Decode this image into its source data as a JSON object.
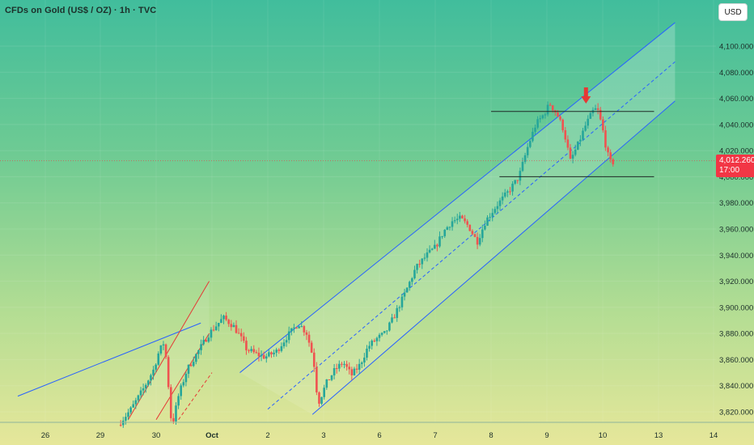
{
  "header": {
    "title": "CFDs on Gold (US$ / OZ) · 1h · TVC",
    "currency_label": "USD"
  },
  "last_price": {
    "value": "4,012.260",
    "countdown": "17:00"
  },
  "colors": {
    "up": "#26a69a",
    "down": "#ef5350",
    "channel": "#2962ff",
    "support_resistance": "#1f2a26",
    "price_tag": "#f23645"
  },
  "chart_data": {
    "type": "candlestick",
    "symbol": "XAUUSD",
    "timeframe": "1h",
    "ylim": [
      3810,
      4120
    ],
    "y_ticks": [
      {
        "value": 3820,
        "label": "3,820.000"
      },
      {
        "value": 3840,
        "label": "3,840.000"
      },
      {
        "value": 3860,
        "label": "3,860.000"
      },
      {
        "value": 3880,
        "label": "3,880.000"
      },
      {
        "value": 3900,
        "label": "3,900.000"
      },
      {
        "value": 3920,
        "label": "3,920.000"
      },
      {
        "value": 3940,
        "label": "3,940.000"
      },
      {
        "value": 3960,
        "label": "3,960.000"
      },
      {
        "value": 3980,
        "label": "3,980.000"
      },
      {
        "value": 4000,
        "label": "4,000.000"
      },
      {
        "value": 4020,
        "label": "4,020.000"
      },
      {
        "value": 4040,
        "label": "4,040.000"
      },
      {
        "value": 4060,
        "label": "4,060.000"
      },
      {
        "value": 4080,
        "label": "4,080.000"
      },
      {
        "value": 4100,
        "label": "4,100.000"
      }
    ],
    "x_ticks": [
      {
        "t": 0,
        "label": "26"
      },
      {
        "t": 1,
        "label": "29"
      },
      {
        "t": 2,
        "label": "30"
      },
      {
        "t": 3,
        "label": "Oct",
        "bold": true
      },
      {
        "t": 4,
        "label": "2"
      },
      {
        "t": 5,
        "label": "3"
      },
      {
        "t": 6,
        "label": "6"
      },
      {
        "t": 7,
        "label": "7"
      },
      {
        "t": 8,
        "label": "8"
      },
      {
        "t": 9,
        "label": "9"
      },
      {
        "t": 10,
        "label": "10"
      },
      {
        "t": 11,
        "label": "13"
      },
      {
        "t": 12,
        "label": "14"
      }
    ],
    "last_price": 4012.26,
    "price_path": [
      [
        1.32,
        3810
      ],
      [
        1.55,
        3822
      ],
      [
        1.75,
        3836
      ],
      [
        1.95,
        3852
      ],
      [
        2.05,
        3866
      ],
      [
        2.15,
        3874
      ],
      [
        2.22,
        3840
      ],
      [
        2.28,
        3808
      ],
      [
        2.4,
        3832
      ],
      [
        2.55,
        3852
      ],
      [
        2.75,
        3866
      ],
      [
        2.95,
        3880
      ],
      [
        3.2,
        3892
      ],
      [
        3.38,
        3886
      ],
      [
        3.5,
        3878
      ],
      [
        3.62,
        3868
      ],
      [
        3.8,
        3864
      ],
      [
        3.95,
        3862
      ],
      [
        4.15,
        3866
      ],
      [
        4.35,
        3878
      ],
      [
        4.55,
        3888
      ],
      [
        4.7,
        3880
      ],
      [
        4.82,
        3860
      ],
      [
        4.9,
        3826
      ],
      [
        5.05,
        3842
      ],
      [
        5.2,
        3852
      ],
      [
        5.35,
        3858
      ],
      [
        5.5,
        3848
      ],
      [
        5.65,
        3856
      ],
      [
        5.8,
        3870
      ],
      [
        5.95,
        3876
      ],
      [
        6.1,
        3880
      ],
      [
        6.25,
        3892
      ],
      [
        6.45,
        3910
      ],
      [
        6.65,
        3930
      ],
      [
        6.85,
        3940
      ],
      [
        7.0,
        3946
      ],
      [
        7.15,
        3958
      ],
      [
        7.3,
        3966
      ],
      [
        7.45,
        3968
      ],
      [
        7.6,
        3962
      ],
      [
        7.75,
        3950
      ],
      [
        7.9,
        3966
      ],
      [
        8.1,
        3978
      ],
      [
        8.3,
        3988
      ],
      [
        8.5,
        4000
      ],
      [
        8.65,
        4022
      ],
      [
        8.8,
        4040
      ],
      [
        8.95,
        4048
      ],
      [
        9.05,
        4056
      ],
      [
        9.18,
        4048
      ],
      [
        9.3,
        4036
      ],
      [
        9.42,
        4012
      ],
      [
        9.55,
        4024
      ],
      [
        9.7,
        4040
      ],
      [
        9.85,
        4052
      ],
      [
        9.92,
        4050
      ],
      [
        10.0,
        4036
      ],
      [
        10.08,
        4018
      ],
      [
        10.15,
        4010
      ],
      [
        10.22,
        4012
      ]
    ],
    "channels": [
      {
        "name": "main-upper",
        "from": [
          3.5,
          3850
        ],
        "to": [
          11.3,
          4118
        ],
        "style": "solid"
      },
      {
        "name": "main-lower",
        "from": [
          4.8,
          3818
        ],
        "to": [
          11.3,
          4058
        ],
        "style": "solid"
      },
      {
        "name": "main-middle",
        "from": [
          4.0,
          3822
        ],
        "to": [
          11.3,
          4088
        ],
        "style": "dashed"
      },
      {
        "name": "trendline-left",
        "from": [
          -0.5,
          3832
        ],
        "to": [
          2.8,
          3888
        ],
        "style": "solid"
      },
      {
        "name": "red-upper",
        "from": [
          1.5,
          3814
        ],
        "to": [
          2.95,
          3920
        ],
        "style": "solid"
      },
      {
        "name": "red-lower",
        "from": [
          2.0,
          3814
        ],
        "to": [
          2.95,
          3880
        ],
        "style": "solid"
      },
      {
        "name": "red-middle",
        "from": [
          2.4,
          3814
        ],
        "to": [
          3.0,
          3850
        ],
        "style": "dashed"
      }
    ],
    "levels": [
      {
        "name": "resistance",
        "value": 4050,
        "from": 8.0,
        "to": 10.92
      },
      {
        "name": "support",
        "value": 4000,
        "from": 8.15,
        "to": 10.92
      }
    ],
    "annotations": [
      {
        "type": "arrow-down",
        "t": 9.7,
        "value": 4056
      }
    ]
  }
}
